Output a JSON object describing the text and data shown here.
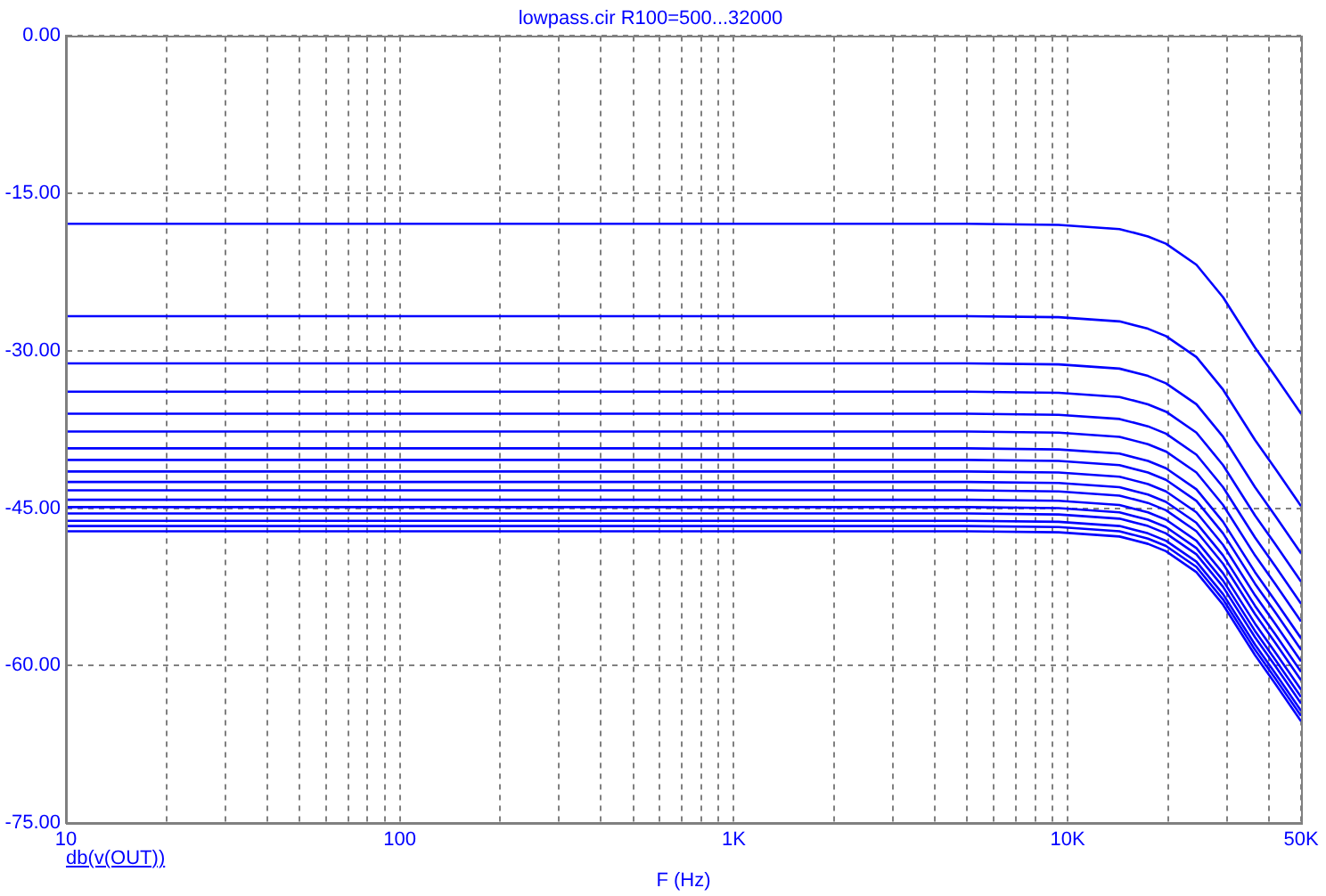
{
  "chart_data": {
    "type": "line",
    "title": "lowpass.cir R100=500...32000",
    "xlabel": "F (Hz)",
    "annotations": [
      "db(v(OUT))"
    ],
    "x": [
      10,
      20,
      100,
      1000,
      5000,
      9400,
      14300,
      17400,
      19700,
      24300,
      29200,
      36400,
      42000,
      50000
    ],
    "series": [
      {
        "color": "#0000ff",
        "values": [
          -17.9,
          -17.9,
          -17.9,
          -17.9,
          -17.9,
          -18.0,
          -18.4,
          -19.1,
          -19.8,
          -21.8,
          -24.9,
          -29.7,
          -32.5,
          -36.0
        ]
      },
      {
        "color": "#0000ff",
        "values": [
          -26.7,
          -26.7,
          -26.7,
          -26.7,
          -26.7,
          -26.8,
          -27.2,
          -27.9,
          -28.6,
          -30.6,
          -33.7,
          -38.5,
          -41.3,
          -44.8
        ]
      },
      {
        "color": "#0000ff",
        "values": [
          -31.2,
          -31.2,
          -31.2,
          -31.2,
          -31.2,
          -31.3,
          -31.7,
          -32.4,
          -33.1,
          -35.1,
          -38.2,
          -43.0,
          -45.8,
          -49.3
        ]
      },
      {
        "color": "#0000ff",
        "values": [
          -33.9,
          -33.9,
          -33.9,
          -33.9,
          -33.9,
          -34.0,
          -34.4,
          -35.1,
          -35.8,
          -37.8,
          -40.9,
          -45.7,
          -48.5,
          -52.0
        ]
      },
      {
        "color": "#0000ff",
        "values": [
          -36.0,
          -36.0,
          -36.0,
          -36.0,
          -36.0,
          -36.1,
          -36.5,
          -37.2,
          -37.9,
          -39.9,
          -43.0,
          -47.8,
          -50.6,
          -54.1
        ]
      },
      {
        "color": "#0000ff",
        "values": [
          -37.7,
          -37.7,
          -37.7,
          -37.7,
          -37.7,
          -37.8,
          -38.2,
          -38.9,
          -39.6,
          -41.6,
          -44.7,
          -49.5,
          -52.3,
          -55.8
        ]
      },
      {
        "color": "#0000ff",
        "values": [
          -39.3,
          -39.3,
          -39.3,
          -39.3,
          -39.3,
          -39.4,
          -39.8,
          -40.5,
          -41.2,
          -43.2,
          -46.3,
          -51.1,
          -53.9,
          -57.4
        ]
      },
      {
        "color": "#0000ff",
        "values": [
          -40.4,
          -40.4,
          -40.4,
          -40.4,
          -40.4,
          -40.5,
          -40.9,
          -41.6,
          -42.3,
          -44.3,
          -47.4,
          -52.2,
          -55.0,
          -58.5
        ]
      },
      {
        "color": "#0000ff",
        "values": [
          -41.5,
          -41.5,
          -41.5,
          -41.5,
          -41.5,
          -41.6,
          -42.0,
          -42.7,
          -43.4,
          -45.4,
          -48.5,
          -53.3,
          -56.1,
          -59.6
        ]
      },
      {
        "color": "#0000ff",
        "values": [
          -42.5,
          -42.5,
          -42.5,
          -42.5,
          -42.5,
          -42.6,
          -43.0,
          -43.7,
          -44.4,
          -46.4,
          -49.5,
          -54.3,
          -57.1,
          -60.6
        ]
      },
      {
        "color": "#0000ff",
        "values": [
          -43.3,
          -43.3,
          -43.3,
          -43.3,
          -43.3,
          -43.4,
          -43.8,
          -44.5,
          -45.2,
          -47.2,
          -50.3,
          -55.1,
          -57.9,
          -61.4
        ]
      },
      {
        "color": "#0000ff",
        "values": [
          -44.2,
          -44.2,
          -44.2,
          -44.2,
          -44.2,
          -44.3,
          -44.7,
          -45.4,
          -46.1,
          -48.1,
          -51.2,
          -56.0,
          -58.8,
          -62.3
        ]
      },
      {
        "color": "#0000ff",
        "values": [
          -44.9,
          -44.9,
          -44.9,
          -44.9,
          -44.9,
          -45.0,
          -45.4,
          -46.1,
          -46.8,
          -48.8,
          -51.9,
          -56.7,
          -59.5,
          -63.0
        ]
      },
      {
        "color": "#0000ff",
        "values": [
          -45.5,
          -45.5,
          -45.5,
          -45.5,
          -45.5,
          -45.6,
          -46.0,
          -46.7,
          -47.4,
          -49.4,
          -52.5,
          -57.3,
          -60.1,
          -63.6
        ]
      },
      {
        "color": "#0000ff",
        "values": [
          -46.2,
          -46.2,
          -46.2,
          -46.2,
          -46.2,
          -46.3,
          -46.7,
          -47.4,
          -48.1,
          -50.1,
          -53.2,
          -58.0,
          -60.8,
          -64.3
        ]
      },
      {
        "color": "#0000ff",
        "values": [
          -46.7,
          -46.7,
          -46.7,
          -46.7,
          -46.7,
          -46.8,
          -47.2,
          -47.9,
          -48.6,
          -50.6,
          -53.7,
          -58.5,
          -61.3,
          -64.8
        ]
      },
      {
        "color": "#0000ff",
        "values": [
          -47.2,
          -47.2,
          -47.2,
          -47.2,
          -47.2,
          -47.3,
          -47.7,
          -48.4,
          -49.1,
          -51.1,
          -54.2,
          -59.0,
          -61.8,
          -65.3
        ]
      }
    ],
    "xlim": [
      10,
      50000
    ],
    "xticks": [
      10,
      {
        "value": 20,
        "label": null
      },
      {
        "value": 30,
        "label": null
      },
      {
        "value": 40,
        "label": null
      },
      {
        "value": 50,
        "label": null
      },
      {
        "value": 60,
        "label": null
      },
      {
        "value": 70,
        "label": null
      },
      {
        "value": 80,
        "label": null
      },
      {
        "value": 90,
        "label": null
      },
      100,
      {
        "value": 200,
        "label": null
      },
      {
        "value": 300,
        "label": null
      },
      {
        "value": 400,
        "label": null
      },
      {
        "value": 500,
        "label": null
      },
      {
        "value": 600,
        "label": null
      },
      {
        "value": 700,
        "label": null
      },
      {
        "value": 800,
        "label": null
      },
      {
        "value": 900,
        "label": null
      },
      {
        "value": 1000,
        "label": "1K"
      },
      {
        "value": 2000,
        "label": null
      },
      {
        "value": 3000,
        "label": null
      },
      {
        "value": 4000,
        "label": null
      },
      {
        "value": 5000,
        "label": null
      },
      {
        "value": 6000,
        "label": null
      },
      {
        "value": 7000,
        "label": null
      },
      {
        "value": 8000,
        "label": null
      },
      {
        "value": 9000,
        "label": null
      },
      {
        "value": 10000,
        "label": "10K"
      },
      {
        "value": 20000,
        "label": null
      },
      {
        "value": 30000,
        "label": null
      },
      {
        "value": 40000,
        "label": null
      },
      {
        "value": 50000,
        "label": "50K"
      }
    ],
    "ylim": [
      -75,
      0
    ],
    "yticks": [
      {
        "value": -75,
        "label": "-75.00"
      },
      {
        "value": -60,
        "label": "-60.00"
      },
      {
        "value": -45,
        "label": "-45.00"
      },
      {
        "value": -30,
        "label": "-30.00"
      },
      {
        "value": -15,
        "label": "-15.00"
      },
      {
        "value": 0,
        "label": "0.00"
      }
    ],
    "log": "x",
    "grid": true,
    "legend": false,
    "marker": "none",
    "line_style": "solid"
  }
}
